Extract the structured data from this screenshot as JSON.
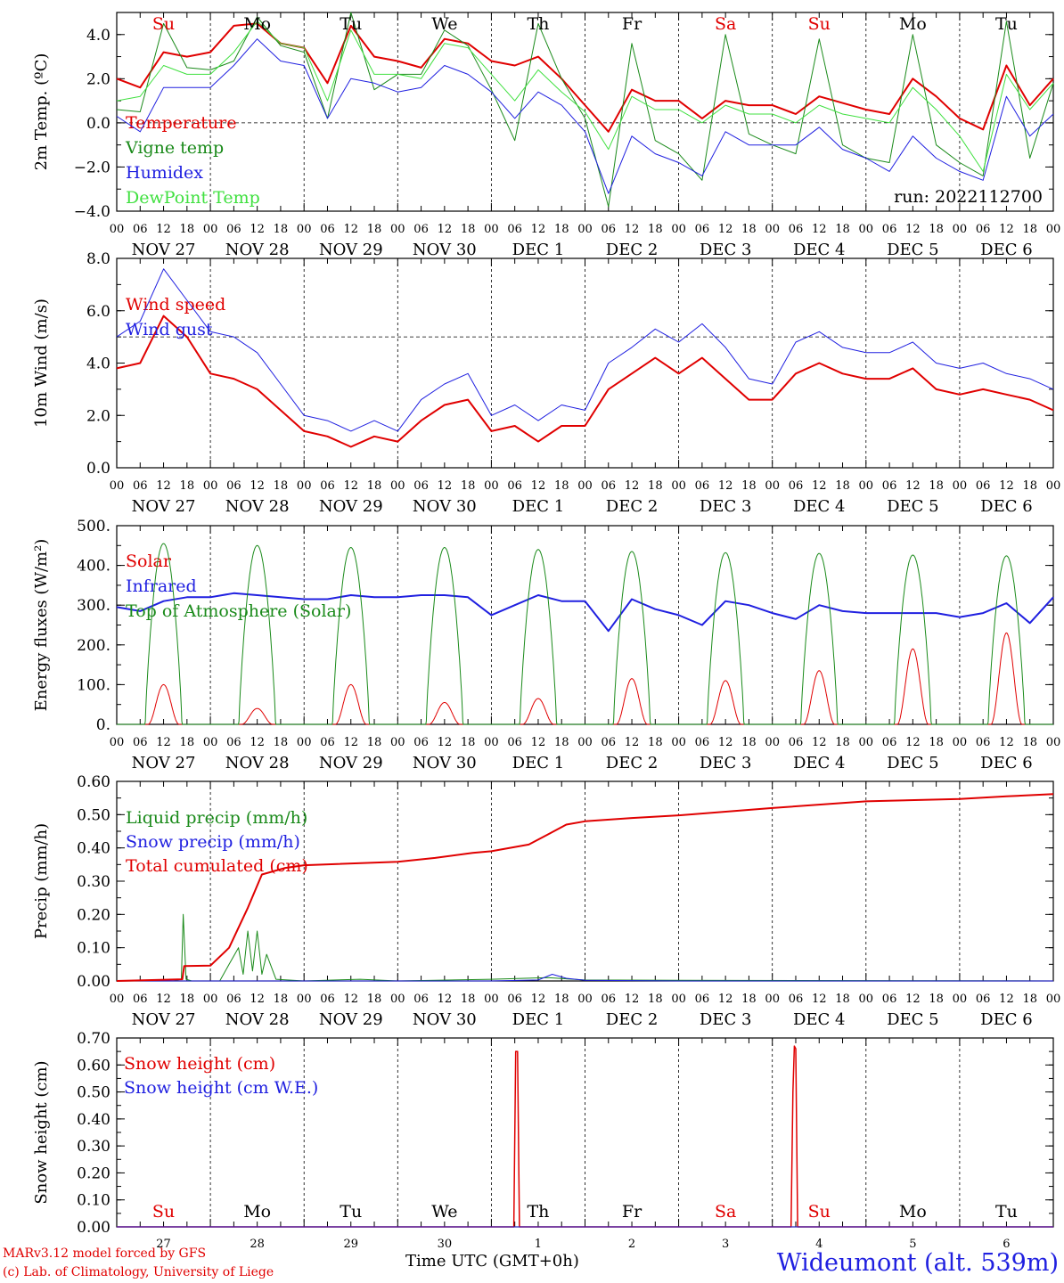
{
  "footer": {
    "credit_line1": "MARv3.12 model forced by GFS",
    "credit_line2": "(c) Lab. of Climatology, University of Liege",
    "xaxis_title": "Time UTC (GMT+0h)",
    "station": "Wideumont (alt. 539m)"
  },
  "colors": {
    "red": "#e00000",
    "green": "#1a8a1a",
    "blue": "#2020e0",
    "lightgreen": "#40e040"
  },
  "axis": {
    "hour_ticks": [
      "00",
      "06",
      "12",
      "18"
    ],
    "date_labels": [
      "NOV 27",
      "NOV 28",
      "NOV 29",
      "NOV 30",
      "DEC  1",
      "DEC  2",
      "DEC  3",
      "DEC  4",
      "DEC  5",
      "DEC  6"
    ],
    "weekdays": [
      "Su",
      "Mo",
      "Tu",
      "We",
      "Th",
      "Fr",
      "Sa",
      "Su",
      "Mo",
      "Tu"
    ],
    "weekday_colors": [
      "red",
      "black",
      "black",
      "black",
      "black",
      "black",
      "red",
      "red",
      "black",
      "black"
    ],
    "day_numbers": [
      "27",
      "28",
      "29",
      "30",
      "1",
      "2",
      "3",
      "4",
      "5",
      "6"
    ]
  },
  "chart_data": [
    {
      "type": "line",
      "ylabel": "2m Temp. (ºC)",
      "ylim": [
        -4,
        5
      ],
      "yticks": [
        -4,
        -2,
        0,
        2,
        4
      ],
      "ytick_labels": [
        "−4.0",
        "−2.0",
        "0.0",
        "2.0",
        "4.0"
      ],
      "hline": 0,
      "run_label": "run: 2022112700",
      "x_days": [
        0,
        0.25,
        0.5,
        0.75,
        1,
        1.25,
        1.5,
        1.75,
        2,
        2.25,
        2.5,
        2.75,
        3,
        3.25,
        3.5,
        3.75,
        4,
        4.25,
        4.5,
        4.75,
        5,
        5.25,
        5.5,
        5.75,
        6,
        6.25,
        6.5,
        6.75,
        7,
        7.25,
        7.5,
        7.75,
        8,
        8.25,
        8.5,
        8.75,
        9,
        9.25,
        9.5,
        9.75,
        10
      ],
      "series": [
        {
          "name": "Temperature",
          "color": "red",
          "width": 2,
          "values": [
            2.0,
            1.6,
            3.2,
            3.0,
            3.2,
            4.4,
            4.5,
            3.6,
            3.4,
            1.8,
            4.4,
            3.0,
            2.8,
            2.5,
            3.8,
            3.6,
            2.8,
            2.6,
            3.0,
            2.0,
            0.8,
            -0.4,
            1.5,
            1.0,
            1.0,
            0.2,
            1.0,
            0.8,
            0.8,
            0.4,
            1.2,
            0.9,
            0.6,
            0.4,
            2.0,
            1.2,
            0.2,
            -0.3,
            2.6,
            0.8,
            2.0
          ]
        },
        {
          "name": "Vigne temp",
          "color": "green",
          "width": 1,
          "values": [
            0.6,
            0.5,
            4.5,
            2.5,
            2.4,
            2.8,
            4.8,
            3.5,
            3.2,
            0.2,
            5.0,
            1.5,
            2.2,
            2.2,
            4.2,
            3.5,
            1.5,
            -0.8,
            4.5,
            2.0,
            0.2,
            -3.8,
            3.6,
            -0.8,
            -1.4,
            -2.6,
            4.0,
            -0.5,
            -1.0,
            -1.4,
            3.8,
            -1.0,
            -1.6,
            -1.8,
            4.0,
            -1.0,
            -1.8,
            -2.4,
            4.6,
            -1.6,
            1.8
          ]
        },
        {
          "name": "Humidex",
          "color": "blue",
          "width": 1,
          "values": [
            0.3,
            -0.4,
            1.6,
            1.6,
            1.6,
            2.6,
            3.8,
            2.8,
            2.6,
            0.2,
            2.0,
            1.8,
            1.4,
            1.6,
            2.6,
            2.2,
            1.4,
            0.2,
            1.4,
            0.8,
            -0.4,
            -3.2,
            -0.6,
            -1.4,
            -1.8,
            -2.4,
            -0.4,
            -1.0,
            -1.0,
            -1.0,
            -0.2,
            -1.2,
            -1.6,
            -2.2,
            -0.6,
            -1.6,
            -2.2,
            -2.6,
            1.2,
            -0.6,
            0.4
          ]
        },
        {
          "name": "DewPoint Temp",
          "color": "lightgreen",
          "width": 1,
          "values": [
            1.0,
            1.2,
            2.6,
            2.2,
            2.2,
            3.2,
            4.6,
            3.6,
            3.4,
            1.0,
            4.2,
            2.2,
            2.2,
            2.0,
            3.6,
            3.4,
            2.2,
            1.0,
            2.4,
            1.4,
            0.5,
            -1.2,
            1.2,
            0.6,
            0.6,
            0.0,
            0.8,
            0.4,
            0.4,
            0.0,
            0.8,
            0.4,
            0.2,
            0.0,
            1.6,
            0.6,
            -0.6,
            -2.2,
            2.2,
            0.6,
            1.8
          ]
        }
      ]
    },
    {
      "type": "line",
      "ylabel": "10m Wind (m/s)",
      "ylim": [
        0,
        8
      ],
      "yticks": [
        0,
        2,
        4,
        6,
        8
      ],
      "ytick_labels": [
        "0.0",
        "2.0",
        "4.0",
        "6.0",
        "8.0"
      ],
      "hline": 5,
      "x_days": [
        0,
        0.25,
        0.5,
        0.75,
        1,
        1.25,
        1.5,
        1.75,
        2,
        2.25,
        2.5,
        2.75,
        3,
        3.25,
        3.5,
        3.75,
        4,
        4.25,
        4.5,
        4.75,
        5,
        5.25,
        5.5,
        5.75,
        6,
        6.25,
        6.5,
        6.75,
        7,
        7.25,
        7.5,
        7.75,
        8,
        8.25,
        8.5,
        8.75,
        9,
        9.25,
        9.5,
        9.75,
        10
      ],
      "series": [
        {
          "name": "Wind speed",
          "color": "red",
          "width": 2,
          "values": [
            3.8,
            4.0,
            5.8,
            5.0,
            3.6,
            3.4,
            3.0,
            2.2,
            1.4,
            1.2,
            0.8,
            1.2,
            1.0,
            1.8,
            2.4,
            2.6,
            1.4,
            1.6,
            1.0,
            1.6,
            1.6,
            3.0,
            3.6,
            4.2,
            3.6,
            4.2,
            3.4,
            2.6,
            2.6,
            3.6,
            4.0,
            3.6,
            3.4,
            3.4,
            3.8,
            3.0,
            2.8,
            3.0,
            2.8,
            2.6,
            2.2
          ]
        },
        {
          "name": "Wind gust",
          "color": "blue",
          "width": 1,
          "values": [
            5.0,
            5.6,
            7.6,
            6.4,
            5.2,
            5.0,
            4.4,
            3.2,
            2.0,
            1.8,
            1.4,
            1.8,
            1.4,
            2.6,
            3.2,
            3.6,
            2.0,
            2.4,
            1.8,
            2.4,
            2.2,
            4.0,
            4.6,
            5.3,
            4.8,
            5.5,
            4.6,
            3.4,
            3.2,
            4.8,
            5.2,
            4.6,
            4.4,
            4.4,
            4.8,
            4.0,
            3.8,
            4.0,
            3.6,
            3.4,
            3.0
          ]
        }
      ]
    },
    {
      "type": "line",
      "ylabel": "Energy fluxes (W/m²)",
      "ylim": [
        0,
        500
      ],
      "yticks": [
        0,
        100,
        200,
        300,
        400,
        500
      ],
      "ytick_labels": [
        "0.",
        "100.",
        "200.",
        "300.",
        "400.",
        "500."
      ],
      "x_days": [
        0,
        0.25,
        0.5,
        0.75,
        1,
        1.25,
        1.5,
        1.75,
        2,
        2.25,
        2.5,
        2.75,
        3,
        3.25,
        3.5,
        3.75,
        4,
        4.25,
        4.5,
        4.75,
        5,
        5.25,
        5.5,
        5.75,
        6,
        6.25,
        6.5,
        6.75,
        7,
        7.25,
        7.5,
        7.75,
        8,
        8.25,
        8.5,
        8.75,
        9,
        9.25,
        9.5,
        9.75,
        10
      ],
      "daily_peaks": {
        "solar": [
          100,
          40,
          100,
          55,
          65,
          115,
          110,
          135,
          190,
          230
        ],
        "toa": [
          455,
          450,
          445,
          445,
          440,
          435,
          432,
          430,
          426,
          424
        ]
      },
      "series": [
        {
          "name": "Solar",
          "color": "red",
          "width": 1
        },
        {
          "name": "Infrared",
          "color": "blue",
          "width": 2,
          "values": [
            295,
            285,
            310,
            320,
            320,
            330,
            325,
            320,
            315,
            315,
            325,
            320,
            320,
            325,
            325,
            320,
            275,
            300,
            325,
            310,
            310,
            235,
            315,
            290,
            275,
            250,
            310,
            300,
            280,
            265,
            300,
            285,
            280,
            280,
            280,
            280,
            270,
            280,
            305,
            255,
            320
          ]
        },
        {
          "name": "Top of Atmosphere (Solar)",
          "color": "green",
          "width": 1
        }
      ]
    },
    {
      "type": "line",
      "ylabel": "Precip (mm/h)",
      "ylim": [
        0,
        0.6
      ],
      "yticks": [
        0,
        0.1,
        0.2,
        0.3,
        0.4,
        0.5,
        0.6
      ],
      "ytick_labels": [
        "0.00",
        "0.10",
        "0.20",
        "0.30",
        "0.40",
        "0.50",
        "0.60"
      ],
      "series": [
        {
          "name": "Liquid precip (mm/h)",
          "color": "green",
          "width": 1,
          "x": [
            0,
            0.6,
            0.69,
            0.71,
            0.74,
            0.8,
            1.1,
            1.2,
            1.3,
            1.35,
            1.4,
            1.45,
            1.5,
            1.55,
            1.6,
            1.7,
            2.0,
            2.6,
            3.0,
            4.0,
            4.6,
            5.0,
            6.0,
            10.0
          ],
          "values": [
            0,
            0,
            0.005,
            0.2,
            0.005,
            0,
            0,
            0.05,
            0.1,
            0.02,
            0.15,
            0.03,
            0.15,
            0.02,
            0.08,
            0.005,
            0,
            0.005,
            0,
            0.005,
            0.01,
            0.003,
            0.002,
            0
          ]
        },
        {
          "name": "Snow precip (mm/h)",
          "color": "blue",
          "width": 1,
          "x": [
            0,
            4.0,
            4.5,
            4.65,
            4.8,
            5.0,
            6.0,
            10.0
          ],
          "values": [
            0,
            0,
            0.003,
            0.02,
            0.008,
            0.002,
            0,
            0
          ]
        },
        {
          "name": "Total cumulated (cm)",
          "color": "red",
          "width": 2,
          "x": [
            0,
            0.7,
            0.72,
            1.0,
            1.2,
            1.4,
            1.55,
            1.8,
            2.0,
            3.0,
            3.4,
            3.8,
            4.0,
            4.4,
            4.6,
            4.8,
            5.0,
            5.5,
            6.0,
            7.0,
            8.0,
            9.0,
            9.5,
            10.0
          ],
          "values": [
            0,
            0.005,
            0.045,
            0.046,
            0.1,
            0.22,
            0.32,
            0.34,
            0.348,
            0.358,
            0.37,
            0.385,
            0.39,
            0.41,
            0.44,
            0.47,
            0.48,
            0.49,
            0.498,
            0.52,
            0.54,
            0.547,
            0.555,
            0.562
          ]
        }
      ]
    },
    {
      "type": "line",
      "ylabel": "Snow height (cm)",
      "ylim": [
        0,
        0.7
      ],
      "yticks": [
        0,
        0.1,
        0.2,
        0.3,
        0.4,
        0.5,
        0.6,
        0.7
      ],
      "ytick_labels": [
        "0.00",
        "0.10",
        "0.20",
        "0.30",
        "0.40",
        "0.50",
        "0.60",
        "0.70"
      ],
      "series": [
        {
          "name": "Snow height (cm)",
          "color": "red",
          "width": 1.5,
          "x": [
            0,
            4.24,
            4.26,
            4.28,
            4.3,
            7.2,
            7.22,
            7.235,
            7.25,
            7.27,
            10.0
          ],
          "values": [
            0,
            0,
            0.65,
            0.65,
            0,
            0,
            0.5,
            0.67,
            0.66,
            0,
            0
          ]
        },
        {
          "name": "Snow height (cm W.E.)",
          "color": "blue",
          "width": 1,
          "x": [
            0,
            10.0
          ],
          "values": [
            0,
            0
          ]
        }
      ]
    }
  ]
}
